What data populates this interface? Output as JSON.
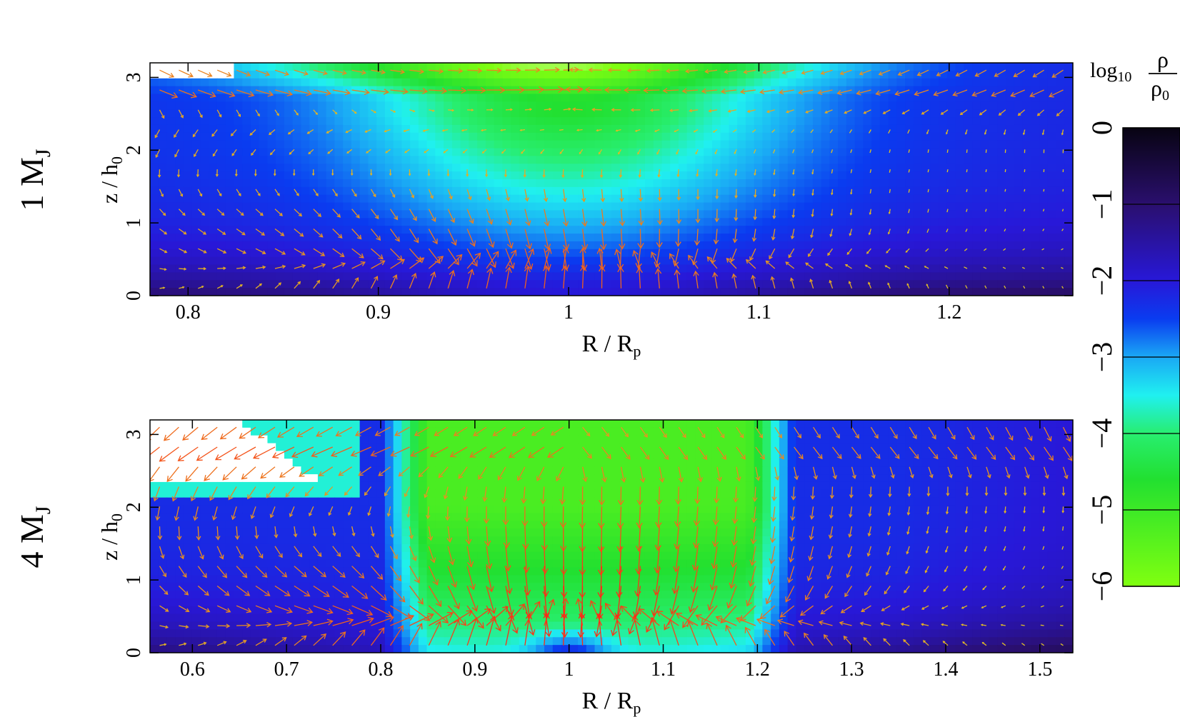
{
  "chart_data": [
    {
      "type": "heatmap",
      "panel_label": "1 M",
      "panel_label_sub": "J",
      "xlabel": "R / R",
      "xlabel_sub": "p",
      "ylabel": "z / h",
      "ylabel_sub": "0",
      "xlim": [
        0.78,
        1.265
      ],
      "ylim": [
        0,
        3.2
      ],
      "xticks": [
        "0.8",
        "0.9",
        "1",
        "1.1",
        "1.2"
      ],
      "xtick_values": [
        0.8,
        0.9,
        1.0,
        1.1,
        1.2
      ],
      "yticks": [
        "0",
        "1",
        "2",
        "3"
      ],
      "ytick_values": [
        0,
        1,
        2,
        3
      ],
      "overlay": "velocity-vector-arrows",
      "density_features": {
        "background_log": -2.4,
        "midplane_dark_log": -1.0,
        "gap_center_top_log": -4.6,
        "inner_upper_white": true
      }
    },
    {
      "type": "heatmap",
      "panel_label": "4 M",
      "panel_label_sub": "J",
      "xlabel": "R / R",
      "xlabel_sub": "p",
      "ylabel": "z / h",
      "ylabel_sub": "0",
      "xlim": [
        0.555,
        1.535
      ],
      "ylim": [
        0,
        3.2
      ],
      "xticks": [
        "0.6",
        "0.7",
        "0.8",
        "0.9",
        "1",
        "1.1",
        "1.2",
        "1.3",
        "1.4",
        "1.5"
      ],
      "xtick_values": [
        0.6,
        0.7,
        0.8,
        0.9,
        1.0,
        1.1,
        1.2,
        1.3,
        1.4,
        1.5
      ],
      "yticks": [
        "0",
        "1",
        "2",
        "3"
      ],
      "ytick_values": [
        0,
        1,
        2,
        3
      ],
      "overlay": "velocity-vector-arrows",
      "density_features": {
        "background_log": -2.3,
        "midplane_dark_log": -1.0,
        "gap_center_top_log": -5.2,
        "inner_upper_white": true
      }
    }
  ],
  "colorbar": {
    "label": "log",
    "label_sub": "10",
    "fraction_num": "ρ",
    "fraction_den": "ρ",
    "fraction_den_sub": "0",
    "ticks": [
      "0",
      "−1",
      "−2",
      "−3",
      "−4",
      "−5",
      "−6"
    ],
    "tick_values": [
      0,
      -1,
      -2,
      -3,
      -4,
      -5,
      -6
    ],
    "range": [
      -6,
      0
    ],
    "stops": [
      {
        "v": 0,
        "color": "#080412"
      },
      {
        "v": -1,
        "color": "#2a0f6e"
      },
      {
        "v": -2,
        "color": "#2818d8"
      },
      {
        "v": -2.5,
        "color": "#0a3cf0"
      },
      {
        "v": -3,
        "color": "#1aa8f5"
      },
      {
        "v": -3.5,
        "color": "#20f0f0"
      },
      {
        "v": -4,
        "color": "#28ee70"
      },
      {
        "v": -4.6,
        "color": "#22e030"
      },
      {
        "v": -6,
        "color": "#80ff10"
      },
      {
        "v": -7,
        "color": "#ffffff"
      }
    ]
  }
}
